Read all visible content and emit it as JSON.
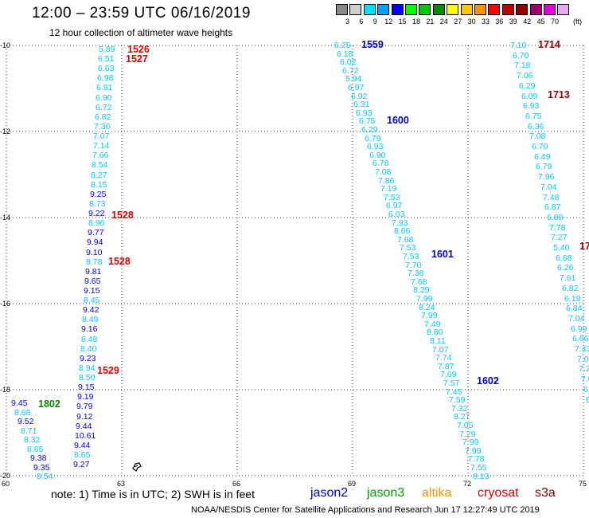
{
  "title": "12:00 – 23:59 UTC 06/16/2019",
  "subtitle": "12 hour collection of altimeter wave heights",
  "scale": {
    "colors": [
      "#888888",
      "#cfcfcf",
      "#00e0ff",
      "#00a0ff",
      "#0000ff",
      "#00ff00",
      "#00c800",
      "#008c00",
      "#ffff00",
      "#ffc800",
      "#ff9000",
      "#ff0000",
      "#c00000",
      "#900000",
      "#a00070",
      "#e000e0",
      "#e8a8f0"
    ],
    "ticks": [
      "3",
      "6",
      "9",
      "12",
      "15",
      "18",
      "21",
      "24",
      "27",
      "30",
      "33",
      "36",
      "39",
      "42",
      "45",
      "70"
    ],
    "unit": "(ft)"
  },
  "map": {
    "lat_labels": [
      "-10",
      "-12",
      "-14",
      "-16",
      "-18",
      "-20"
    ],
    "lon_labels": [
      "60",
      "63",
      "66",
      "69",
      "72",
      "75"
    ],
    "obs_left": [
      {
        "v": "5.89",
        "c": "#00c8ff"
      },
      {
        "v": "6.51",
        "c": "#00c8ff"
      },
      {
        "v": "6.63",
        "c": "#00c8ff"
      },
      {
        "v": "6.98",
        "c": "#00c8ff"
      },
      {
        "v": "6.91",
        "c": "#00c8ff"
      },
      {
        "v": "6.90",
        "c": "#00c8ff"
      },
      {
        "v": "6.72",
        "c": "#00c8ff"
      },
      {
        "v": "6.82",
        "c": "#00c8ff"
      },
      {
        "v": "7.36",
        "c": "#00c8ff"
      },
      {
        "v": "7.07",
        "c": "#00c8ff"
      },
      {
        "v": "7.14",
        "c": "#00c8ff"
      },
      {
        "v": "7.66",
        "c": "#00c8ff"
      },
      {
        "v": "8.54",
        "c": "#00c8ff"
      },
      {
        "v": "8.27",
        "c": "#00c8ff"
      },
      {
        "v": "8.15",
        "c": "#00c8ff"
      },
      {
        "v": "9.25",
        "c": "#0000ff"
      },
      {
        "v": "8.73",
        "c": "#00c8ff"
      },
      {
        "v": "9.22",
        "c": "#0000ff"
      },
      {
        "v": "8.96",
        "c": "#00c8ff"
      },
      {
        "v": "9.77",
        "c": "#0000ff"
      },
      {
        "v": "9.94",
        "c": "#0000ff"
      },
      {
        "v": "9.10",
        "c": "#0000ff"
      },
      {
        "v": "8.78",
        "c": "#00c8ff"
      },
      {
        "v": "9.81",
        "c": "#0000ff"
      },
      {
        "v": "9.65",
        "c": "#0000ff"
      },
      {
        "v": "9.15",
        "c": "#0000ff"
      },
      {
        "v": "8.45",
        "c": "#00c8ff"
      },
      {
        "v": "9.42",
        "c": "#0000ff"
      },
      {
        "v": "8.49",
        "c": "#00c8ff"
      },
      {
        "v": "9.16",
        "c": "#0000ff"
      },
      {
        "v": "8.48",
        "c": "#00c8ff"
      },
      {
        "v": "8.40",
        "c": "#00c8ff"
      },
      {
        "v": "9.23",
        "c": "#0000ff"
      },
      {
        "v": "8.94",
        "c": "#00c8ff"
      },
      {
        "v": "8.50",
        "c": "#00c8ff"
      },
      {
        "v": "9.15",
        "c": "#0000ff"
      },
      {
        "v": "9.19",
        "c": "#0000ff"
      },
      {
        "v": "9.79",
        "c": "#0000ff"
      },
      {
        "v": "9.12",
        "c": "#0000ff"
      },
      {
        "v": "9.44",
        "c": "#0000ff"
      },
      {
        "v": "10.61",
        "c": "#0000ff"
      },
      {
        "v": "9.44",
        "c": "#0000ff"
      },
      {
        "v": "8.65",
        "c": "#00c8ff"
      },
      {
        "v": "9.27",
        "c": "#0000ff"
      }
    ],
    "obs_far_left": [
      {
        "v": "9.45",
        "c": "#0000ff"
      },
      {
        "v": "8.68",
        "c": "#00c8ff"
      },
      {
        "v": "9.52",
        "c": "#0000ff"
      },
      {
        "v": "8.71",
        "c": "#00c8ff"
      },
      {
        "v": "8.32",
        "c": "#00c8ff"
      },
      {
        "v": "8.65",
        "c": "#00c8ff"
      },
      {
        "v": "9.38",
        "c": "#0000ff"
      },
      {
        "v": "9.35",
        "c": "#0000ff"
      },
      {
        "v": "8.54",
        "c": "#00c8ff"
      }
    ],
    "obs_mid": [
      {
        "v": "6.25",
        "c": "#00c8ff"
      },
      {
        "v": "6.18",
        "c": "#00c8ff"
      },
      {
        "v": "6.02",
        "c": "#00c8ff"
      },
      {
        "v": "6.72",
        "c": "#00c8ff"
      },
      {
        "v": "5.94",
        "c": "#00c8ff"
      },
      {
        "v": "6.97",
        "c": "#00c8ff"
      },
      {
        "v": "6.92",
        "c": "#00c8ff"
      },
      {
        "v": "6.31",
        "c": "#00c8ff"
      },
      {
        "v": "6.93",
        "c": "#00c8ff"
      },
      {
        "v": "6.75",
        "c": "#00c8ff"
      },
      {
        "v": "6.29",
        "c": "#00c8ff"
      },
      {
        "v": "6.79",
        "c": "#00c8ff"
      },
      {
        "v": "6.93",
        "c": "#00c8ff"
      },
      {
        "v": "6.90",
        "c": "#00c8ff"
      },
      {
        "v": "6.78",
        "c": "#00c8ff"
      },
      {
        "v": "7.08",
        "c": "#00c8ff"
      },
      {
        "v": "7.86",
        "c": "#00c8ff"
      },
      {
        "v": "7.19",
        "c": "#00c8ff"
      },
      {
        "v": "7.53",
        "c": "#00c8ff"
      },
      {
        "v": "6.97",
        "c": "#00c8ff"
      },
      {
        "v": "6.03",
        "c": "#00c8ff"
      },
      {
        "v": "7.93",
        "c": "#00c8ff"
      },
      {
        "v": "8.66",
        "c": "#00c8ff"
      },
      {
        "v": "7.68",
        "c": "#00c8ff"
      },
      {
        "v": "7.53",
        "c": "#00c8ff"
      },
      {
        "v": "7.53",
        "c": "#00c8ff"
      },
      {
        "v": "7.70",
        "c": "#00c8ff"
      },
      {
        "v": "7.38",
        "c": "#00c8ff"
      },
      {
        "v": "7.68",
        "c": "#00c8ff"
      },
      {
        "v": "8.29",
        "c": "#00c8ff"
      },
      {
        "v": "7.99",
        "c": "#00c8ff"
      },
      {
        "v": "8.24",
        "c": "#00c8ff"
      },
      {
        "v": "7.99",
        "c": "#00c8ff"
      },
      {
        "v": "7.49",
        "c": "#00c8ff"
      },
      {
        "v": "8.80",
        "c": "#00c8ff"
      },
      {
        "v": "8.11",
        "c": "#00c8ff"
      },
      {
        "v": "7.07",
        "c": "#00c8ff"
      },
      {
        "v": "7.74",
        "c": "#00c8ff"
      },
      {
        "v": "7.87",
        "c": "#00c8ff"
      },
      {
        "v": "7.69",
        "c": "#00c8ff"
      },
      {
        "v": "7.57",
        "c": "#00c8ff"
      },
      {
        "v": "7.45",
        "c": "#00c8ff"
      },
      {
        "v": "7.59",
        "c": "#00c8ff"
      },
      {
        "v": "7.32",
        "c": "#00c8ff"
      },
      {
        "v": "8.27",
        "c": "#00c8ff"
      },
      {
        "v": "7.05",
        "c": "#00c8ff"
      },
      {
        "v": "7.29",
        "c": "#00c8ff"
      },
      {
        "v": "7.99",
        "c": "#00c8ff"
      },
      {
        "v": "7.99",
        "c": "#00c8ff"
      },
      {
        "v": "7.78",
        "c": "#00c8ff"
      },
      {
        "v": "7.55",
        "c": "#00c8ff"
      },
      {
        "v": "8.13",
        "c": "#00c8ff"
      }
    ],
    "obs_right": [
      {
        "v": "7.10",
        "c": "#00c8ff"
      },
      {
        "v": "6.70",
        "c": "#00c8ff"
      },
      {
        "v": "7.18",
        "c": "#00c8ff"
      },
      {
        "v": "7.06",
        "c": "#00c8ff"
      },
      {
        "v": "6.29",
        "c": "#00c8ff"
      },
      {
        "v": "6.09",
        "c": "#00c8ff"
      },
      {
        "v": "6.93",
        "c": "#00c8ff"
      },
      {
        "v": "6.75",
        "c": "#00c8ff"
      },
      {
        "v": "6.36",
        "c": "#00c8ff"
      },
      {
        "v": "7.08",
        "c": "#00c8ff"
      },
      {
        "v": "6.70",
        "c": "#00c8ff"
      },
      {
        "v": "6.49",
        "c": "#00c8ff"
      },
      {
        "v": "6.79",
        "c": "#00c8ff"
      },
      {
        "v": "7.96",
        "c": "#00c8ff"
      },
      {
        "v": "7.04",
        "c": "#00c8ff"
      },
      {
        "v": "7.48",
        "c": "#00c8ff"
      },
      {
        "v": "6.87",
        "c": "#00c8ff"
      },
      {
        "v": "6.80",
        "c": "#00c8ff"
      },
      {
        "v": "7.78",
        "c": "#00c8ff"
      },
      {
        "v": "7.27",
        "c": "#00c8ff"
      },
      {
        "v": "5.40",
        "c": "#00c8ff"
      },
      {
        "v": "6.68",
        "c": "#00c8ff"
      },
      {
        "v": "6.26",
        "c": "#00c8ff"
      },
      {
        "v": "7.61",
        "c": "#00c8ff"
      },
      {
        "v": "6.82",
        "c": "#00c8ff"
      },
      {
        "v": "6.19",
        "c": "#00c8ff"
      },
      {
        "v": "6.84",
        "c": "#00c8ff"
      },
      {
        "v": "7.04",
        "c": "#00c8ff"
      },
      {
        "v": "6.99",
        "c": "#00c8ff"
      },
      {
        "v": "6.66",
        "c": "#00c8ff"
      },
      {
        "v": "7.43",
        "c": "#00c8ff"
      },
      {
        "v": "7.0",
        "c": "#00c8ff"
      },
      {
        "v": "7.2",
        "c": "#00c8ff"
      },
      {
        "v": "7.0",
        "c": "#00c8ff"
      },
      {
        "v": "6.8",
        "c": "#00c8ff"
      },
      {
        "v": "6.9",
        "c": "#00c8ff"
      }
    ],
    "time_labels": [
      {
        "v": "1526",
        "c": "#e00000"
      },
      {
        "v": "1527",
        "c": "#e00000"
      },
      {
        "v": "1528",
        "c": "#e00000"
      },
      {
        "v": "1528",
        "c": "#e00000"
      },
      {
        "v": "1529",
        "c": "#e00000"
      },
      {
        "v": "1802",
        "c": "#008c00"
      },
      {
        "v": "1559",
        "c": "#0000d0"
      },
      {
        "v": "1600",
        "c": "#0000d0"
      },
      {
        "v": "1601",
        "c": "#0000d0"
      },
      {
        "v": "1602",
        "c": "#0000d0"
      },
      {
        "v": "1714",
        "c": "#900000"
      },
      {
        "v": "1713",
        "c": "#900000"
      },
      {
        "v": "17",
        "c": "#900000"
      }
    ]
  },
  "note": "note:  1) Time is in UTC;  2) SWH is in feet",
  "legend": [
    {
      "label": "jason2",
      "color": "#0000d0"
    },
    {
      "label": "jason3",
      "color": "#00a000"
    },
    {
      "label": "altika",
      "color": "#ff9000"
    },
    {
      "label": "cryosat",
      "color": "#e00000"
    },
    {
      "label": "s3a",
      "color": "#900000"
    }
  ],
  "footer": "NOAA/NESDIS Center for Satellite Applications and Research    Jun 17 12:27:49 UTC 2019"
}
